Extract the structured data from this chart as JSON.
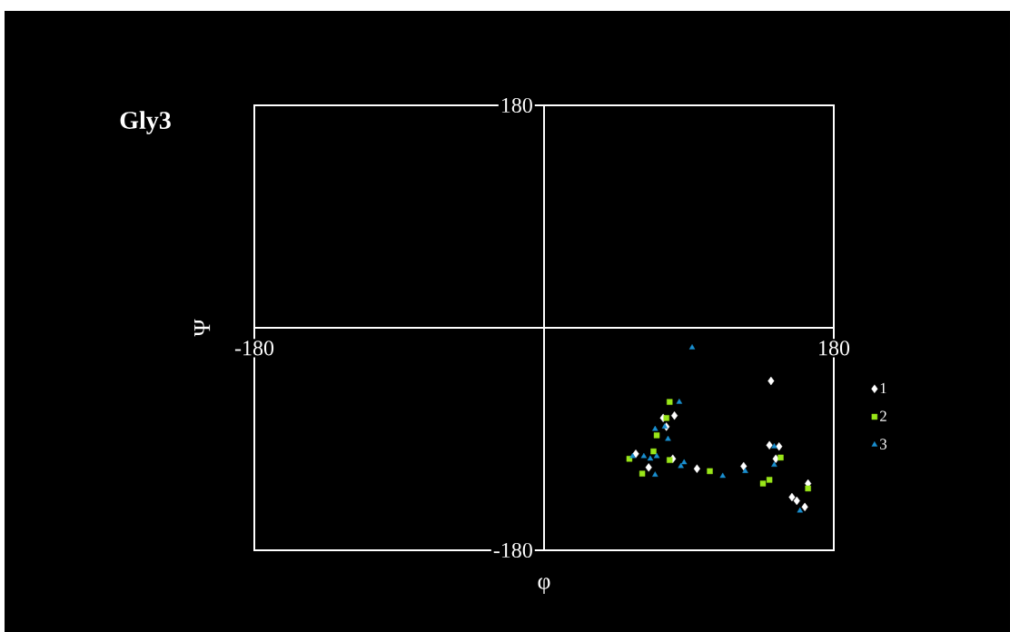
{
  "chart_data": {
    "type": "scatter",
    "title": "Gly3",
    "xlabel": "φ",
    "ylabel": "Ψ",
    "xlim": [
      -180,
      180
    ],
    "ylim": [
      -180,
      180
    ],
    "xticks": [
      -180,
      180
    ],
    "yticks": [
      -180,
      180
    ],
    "legend": "right",
    "series": [
      {
        "name": "1",
        "color": "#ffffff",
        "marker": "diamond",
        "x": [
          141,
          81,
          74,
          57,
          65,
          80,
          95,
          124,
          140,
          146,
          144,
          154,
          164,
          162,
          157,
          76
        ],
        "values": [
          -43,
          -71,
          -73,
          -102,
          -113,
          -106,
          -114,
          -112,
          -95,
          -96,
          -106,
          -137,
          -126,
          -145,
          -140,
          -80
        ]
      },
      {
        "name": "2",
        "color": "#99e619",
        "marker": "square",
        "x": [
          78,
          61,
          53,
          70,
          76,
          78,
          103,
          136,
          140,
          147,
          164,
          68
        ],
        "values": [
          -60,
          -118,
          -106,
          -87,
          -73,
          -107,
          -116,
          -126,
          -123,
          -105,
          -130,
          -100
        ]
      },
      {
        "name": "3",
        "color": "#1a8fd0",
        "marker": "triangle",
        "x": [
          92,
          84,
          69,
          75,
          77,
          55,
          66,
          70,
          69,
          85,
          87,
          111,
          125,
          143,
          143,
          159,
          62
        ],
        "values": [
          -16,
          -60,
          -82,
          -80,
          -90,
          -104,
          -106,
          -104,
          -119,
          -112,
          -109,
          -120,
          -116,
          -96,
          -111,
          -148,
          -104
        ]
      }
    ]
  }
}
